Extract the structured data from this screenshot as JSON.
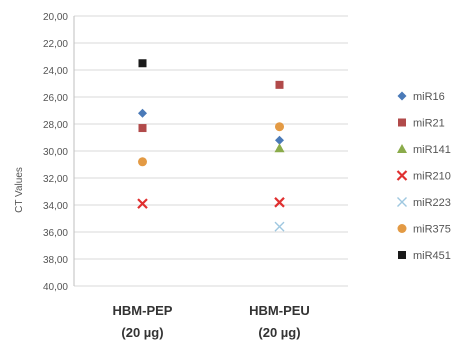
{
  "chart_data": {
    "type": "scatter",
    "ylabel": "CT Values",
    "ylim": [
      40,
      20
    ],
    "y_reversed": true,
    "y_ticks": [
      "20,00",
      "22,00",
      "24,00",
      "26,00",
      "28,00",
      "30,00",
      "32,00",
      "34,00",
      "36,00",
      "38,00",
      "40,00"
    ],
    "grid": true,
    "legend_position": "right",
    "categories": [
      [
        "HBM-PEP",
        "(20 µg)"
      ],
      [
        "HBM-PEU",
        "(20 µg)"
      ]
    ],
    "series": [
      {
        "name": "miR16",
        "marker": "diamond",
        "color": "#4a7ab8",
        "values": [
          27.2,
          29.2
        ]
      },
      {
        "name": "miR21",
        "marker": "square",
        "color": "#b14a4a",
        "values": [
          28.3,
          25.1
        ]
      },
      {
        "name": "miR141",
        "marker": "triangle",
        "color": "#8aab4a",
        "values": [
          null,
          29.8
        ]
      },
      {
        "name": "miR210",
        "marker": "x",
        "color": "#e03030",
        "values": [
          33.9,
          33.8
        ]
      },
      {
        "name": "miR223",
        "marker": "x-thin",
        "color": "#9fc8e0",
        "values": [
          null,
          35.6
        ]
      },
      {
        "name": "miR375",
        "marker": "circle",
        "color": "#e39a44",
        "values": [
          30.8,
          28.2
        ]
      },
      {
        "name": "miR451",
        "marker": "square",
        "color": "#1a1a1a",
        "values": [
          23.5,
          null
        ]
      }
    ]
  }
}
